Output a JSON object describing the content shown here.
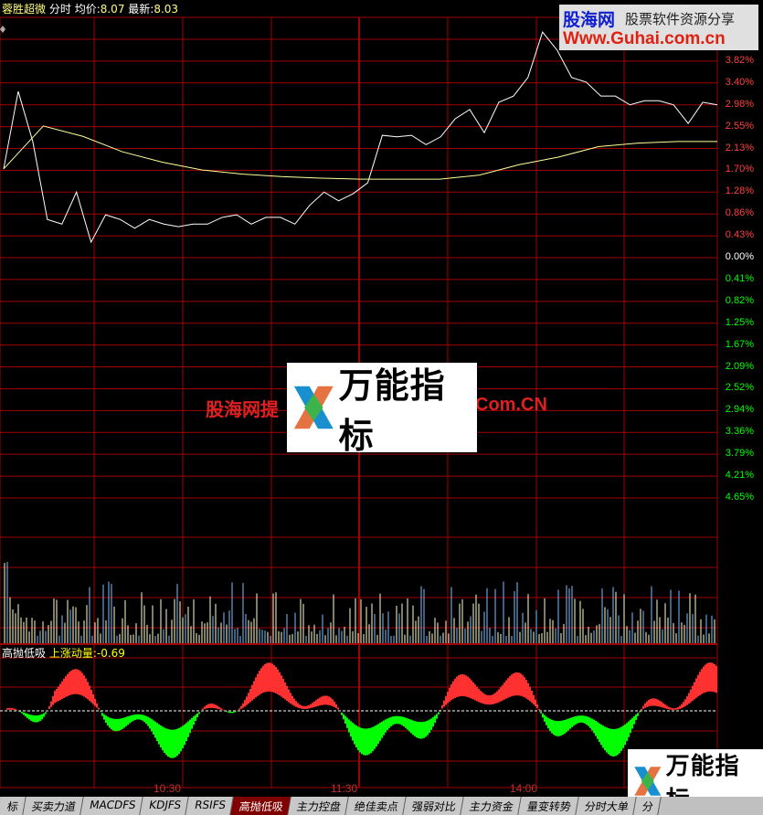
{
  "header": {
    "stock_name": "蓉胜超微",
    "mode": "分时",
    "avg_label": "均价:",
    "avg_value": "8.07",
    "last_label": "最新:",
    "last_value": "8.03"
  },
  "indicator": {
    "name": "高抛低吸",
    "series_label": "上涨动量:",
    "series_value": "-0.69"
  },
  "axis_up": [
    "3.82%",
    "3.40%",
    "2.98%",
    "2.55%",
    "2.13%",
    "1.70%",
    "1.28%",
    "0.86%",
    "0.43%",
    "0.00%"
  ],
  "axis_down": [
    "0.41%",
    "0.82%",
    "1.25%",
    "1.67%",
    "2.09%",
    "2.52%",
    "2.94%",
    "3.36%",
    "3.79%",
    "4.21%",
    "4.65%"
  ],
  "time_labels": [
    "10:30",
    "11:30",
    "14:00"
  ],
  "tabs": [
    {
      "label": "标"
    },
    {
      "label": "买卖力道"
    },
    {
      "label": "MACDFS"
    },
    {
      "label": "KDJFS"
    },
    {
      "label": "RSIFS"
    },
    {
      "label": "高抛低吸",
      "active": true
    },
    {
      "label": "主力控盘"
    },
    {
      "label": "绝佳卖点"
    },
    {
      "label": "强弱对比"
    },
    {
      "label": "主力资金"
    },
    {
      "label": "量变转势"
    },
    {
      "label": "分时大单"
    },
    {
      "label": "分"
    }
  ],
  "watermarks": {
    "site_cn": "股海网",
    "slogan": "股票软件资源分享",
    "url": "Www.Guhai.com.cn",
    "center_left": "股海网提",
    "center_right": "Com.CN",
    "logo_text": "万能指标"
  },
  "colors": {
    "up": "#ff3030",
    "down": "#00ff00",
    "grid": "#a00000",
    "price": "#ffffff",
    "avg": "#ffff99"
  },
  "chart_data": {
    "type": "line",
    "price_pct": [
      1.72,
      3.22,
      2.25,
      0.74,
      0.65,
      1.27,
      0.3,
      0.83,
      0.74,
      0.57,
      0.74,
      0.65,
      0.6,
      0.65,
      0.65,
      0.78,
      0.83,
      0.65,
      0.78,
      0.78,
      0.65,
      1.01,
      1.27,
      1.1,
      1.24,
      1.45,
      2.37,
      2.34,
      2.37,
      2.19,
      2.34,
      2.69,
      2.87,
      2.42,
      3.01,
      3.13,
      3.49,
      4.37,
      4.02,
      3.49,
      3.4,
      3.13,
      3.13,
      2.96,
      3.04,
      3.04,
      2.96,
      2.6,
      3.01,
      2.96
    ],
    "avg_pct": [
      1.72,
      2.55,
      2.35,
      2.05,
      1.85,
      1.7,
      1.62,
      1.57,
      1.54,
      1.52,
      1.52,
      1.52,
      1.6,
      1.8,
      1.95,
      2.15,
      2.22,
      2.25,
      2.25
    ],
    "ylim": [
      -4.65,
      4.65
    ]
  }
}
